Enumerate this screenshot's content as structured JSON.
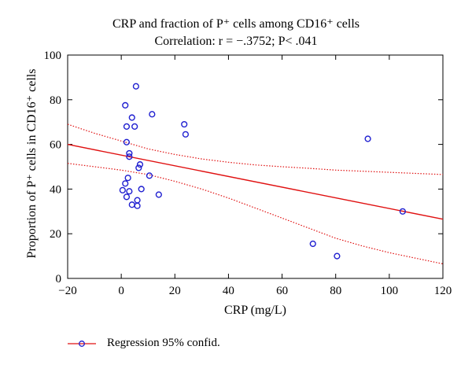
{
  "chart_data": {
    "type": "scatter",
    "title": "CRP and fraction of P⁺ cells among CD16⁺ cells",
    "subtitle": "Correlation: r = −.3752; P< .041",
    "xlabel": "CRP (mg/L)",
    "ylabel": "Proportion of P⁺ cells in CD16⁺ cells",
    "xlim": [
      -20,
      120
    ],
    "ylim": [
      0,
      100
    ],
    "x_ticks": [
      -20,
      0,
      20,
      40,
      60,
      80,
      100,
      120
    ],
    "y_ticks": [
      0,
      20,
      40,
      60,
      80,
      100
    ],
    "x_tick_labels": [
      "−20",
      "0",
      "20",
      "40",
      "60",
      "80",
      "100",
      "120"
    ],
    "y_tick_labels": [
      "0",
      "20",
      "40",
      "60",
      "80",
      "100"
    ],
    "grid": false,
    "legend": {
      "placement": "bottom-left",
      "label": "Regression 95% confid."
    },
    "colors": {
      "points": "#1f1fd0",
      "regression": "#e01010",
      "confidence": "#e01010"
    },
    "points": [
      {
        "x": 5.5,
        "y": 86
      },
      {
        "x": 1.5,
        "y": 77.5
      },
      {
        "x": 4,
        "y": 72
      },
      {
        "x": 11.5,
        "y": 73.5
      },
      {
        "x": 2,
        "y": 68
      },
      {
        "x": 5,
        "y": 68
      },
      {
        "x": 23.5,
        "y": 69
      },
      {
        "x": 24,
        "y": 64.5
      },
      {
        "x": 2,
        "y": 61
      },
      {
        "x": 3,
        "y": 56
      },
      {
        "x": 3,
        "y": 54.5
      },
      {
        "x": 7,
        "y": 51
      },
      {
        "x": 6.5,
        "y": 49.5
      },
      {
        "x": 2.5,
        "y": 45
      },
      {
        "x": 10.5,
        "y": 46
      },
      {
        "x": 1.5,
        "y": 42.5
      },
      {
        "x": 0.5,
        "y": 39.5
      },
      {
        "x": 3,
        "y": 39
      },
      {
        "x": 7.5,
        "y": 40
      },
      {
        "x": 2,
        "y": 36.5
      },
      {
        "x": 14,
        "y": 37.5
      },
      {
        "x": 6,
        "y": 35
      },
      {
        "x": 4,
        "y": 33
      },
      {
        "x": 6,
        "y": 32.5
      },
      {
        "x": 92,
        "y": 62.5
      },
      {
        "x": 105,
        "y": 30
      },
      {
        "x": 71.5,
        "y": 15.5
      },
      {
        "x": 80.5,
        "y": 10
      }
    ],
    "regression_line": [
      {
        "x": -20,
        "y": 60
      },
      {
        "x": 120,
        "y": 26.5
      }
    ],
    "confidence_upper": [
      {
        "x": -20,
        "y": 69
      },
      {
        "x": -10,
        "y": 65
      },
      {
        "x": 0,
        "y": 61.5
      },
      {
        "x": 10,
        "y": 58
      },
      {
        "x": 20,
        "y": 55.5
      },
      {
        "x": 30,
        "y": 53.5
      },
      {
        "x": 40,
        "y": 52
      },
      {
        "x": 50,
        "y": 50.8
      },
      {
        "x": 60,
        "y": 50
      },
      {
        "x": 70,
        "y": 49.3
      },
      {
        "x": 80,
        "y": 48.5
      },
      {
        "x": 90,
        "y": 48
      },
      {
        "x": 100,
        "y": 47.5
      },
      {
        "x": 110,
        "y": 47
      },
      {
        "x": 120,
        "y": 46.5
      }
    ],
    "confidence_lower": [
      {
        "x": -20,
        "y": 51.5
      },
      {
        "x": -10,
        "y": 50
      },
      {
        "x": 0,
        "y": 48.5
      },
      {
        "x": 10,
        "y": 46.5
      },
      {
        "x": 20,
        "y": 43.5
      },
      {
        "x": 30,
        "y": 40
      },
      {
        "x": 40,
        "y": 36
      },
      {
        "x": 50,
        "y": 31.5
      },
      {
        "x": 60,
        "y": 27
      },
      {
        "x": 70,
        "y": 22.5
      },
      {
        "x": 80,
        "y": 18
      },
      {
        "x": 90,
        "y": 14.5
      },
      {
        "x": 100,
        "y": 11.5
      },
      {
        "x": 110,
        "y": 9
      },
      {
        "x": 120,
        "y": 6.5
      }
    ]
  }
}
